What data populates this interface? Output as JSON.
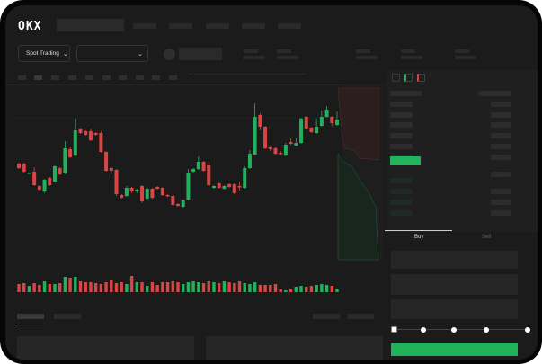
{
  "header": {
    "logo": "OKX"
  },
  "toolbar": {
    "market_selector": "Spot Trading",
    "chevron": "⌄"
  },
  "trade_panel": {
    "tabs": [
      {
        "label": "Buy",
        "active": true
      },
      {
        "label": "Sell",
        "active": false
      }
    ],
    "slider_stops": 5,
    "slider_value_percent": 0,
    "buy_color": "#21b35a"
  },
  "colors": {
    "up": "#22b05c",
    "down": "#d94444",
    "background": "#1b1b1b"
  },
  "chart_data": {
    "type": "candlestick",
    "ylim": [
      15,
      140
    ],
    "ohlc": [
      [
        68,
        69,
        62,
        63
      ],
      [
        68,
        69,
        58,
        59
      ],
      [
        57,
        58,
        57,
        58
      ],
      [
        59,
        64,
        43,
        44
      ],
      [
        43,
        44,
        38,
        39
      ],
      [
        37,
        51,
        35,
        50
      ],
      [
        52,
        53,
        43,
        44
      ],
      [
        48,
        66,
        47,
        65
      ],
      [
        63,
        64,
        55,
        56
      ],
      [
        57,
        93,
        56,
        85
      ],
      [
        84,
        86,
        74,
        75
      ],
      [
        77,
        118,
        76,
        105
      ],
      [
        107,
        108,
        101,
        102
      ],
      [
        104,
        105,
        99,
        100
      ],
      [
        104,
        107,
        93,
        94
      ],
      [
        102,
        103,
        99,
        100
      ],
      [
        102,
        104,
        80,
        81
      ],
      [
        81,
        82,
        59,
        60
      ],
      [
        63,
        64,
        56,
        60
      ],
      [
        61,
        62,
        32,
        34
      ],
      [
        33,
        34,
        29,
        30
      ],
      [
        32,
        43,
        31,
        41
      ],
      [
        41,
        42,
        35,
        37
      ],
      [
        37,
        40,
        35,
        39
      ],
      [
        43,
        44,
        24,
        26
      ],
      [
        29,
        42,
        28,
        40
      ],
      [
        40,
        41,
        28,
        30
      ],
      [
        42,
        43,
        39,
        40
      ],
      [
        41,
        42,
        32,
        33
      ],
      [
        33,
        34,
        31,
        32
      ],
      [
        32,
        33,
        21,
        22
      ],
      [
        23,
        24,
        20,
        21
      ],
      [
        20,
        28,
        19,
        27
      ],
      [
        28,
        62,
        27,
        58
      ],
      [
        59,
        63,
        58,
        62
      ],
      [
        62,
        76,
        61,
        70
      ],
      [
        70,
        71,
        59,
        60
      ],
      [
        66,
        70,
        43,
        44
      ],
      [
        41,
        44,
        40,
        43
      ],
      [
        46,
        47,
        40,
        41
      ],
      [
        40,
        44,
        39,
        43
      ],
      [
        45,
        46,
        41,
        42
      ],
      [
        45,
        46,
        34,
        35
      ],
      [
        43,
        48,
        38,
        42
      ],
      [
        41,
        65,
        40,
        63
      ],
      [
        63,
        83,
        62,
        79
      ],
      [
        78,
        135,
        77,
        120
      ],
      [
        122,
        124,
        105,
        109
      ],
      [
        109,
        110,
        84,
        85
      ],
      [
        86,
        87,
        82,
        84
      ],
      [
        85,
        86,
        78,
        79
      ],
      [
        80,
        82,
        78,
        79
      ],
      [
        77,
        91,
        76,
        89
      ],
      [
        92,
        96,
        89,
        90
      ],
      [
        88,
        96,
        87,
        91
      ],
      [
        91,
        119,
        90,
        118
      ],
      [
        120,
        121,
        106,
        107
      ],
      [
        108,
        109,
        102,
        103
      ],
      [
        102,
        118,
        101,
        109
      ],
      [
        110,
        127,
        109,
        120
      ],
      [
        120,
        132,
        119,
        128
      ],
      [
        120,
        121,
        110,
        113
      ],
      [
        111,
        126,
        110,
        117
      ]
    ],
    "volume": [
      9,
      10,
      7,
      10,
      8,
      12,
      9,
      9,
      10,
      17,
      16,
      17,
      12,
      11,
      11,
      10,
      9,
      11,
      13,
      10,
      11,
      9,
      18,
      11,
      11,
      7,
      11,
      8,
      11,
      11,
      12,
      11,
      9,
      11,
      12,
      11,
      10,
      12,
      11,
      10,
      12,
      11,
      10,
      12,
      10,
      9,
      11,
      8,
      8,
      8,
      9,
      3,
      2,
      4,
      6,
      7,
      6,
      7,
      8,
      9,
      8,
      7,
      3
    ]
  }
}
